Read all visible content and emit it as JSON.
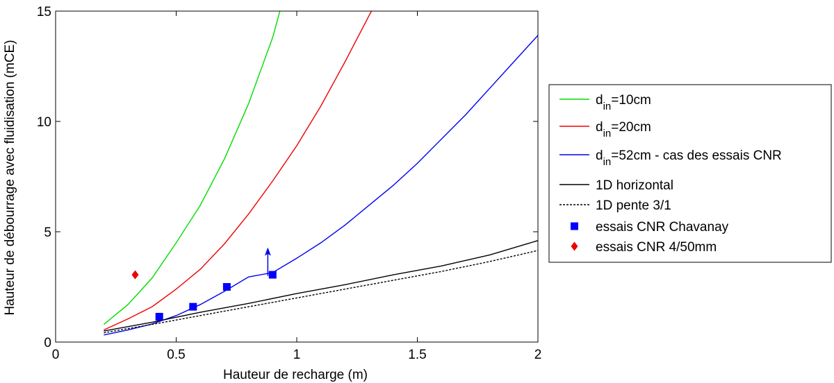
{
  "chart_data": {
    "type": "line",
    "xlabel": "Hauteur de recharge (m)",
    "ylabel": "Hauteur de débourrage avec fluidisation (mCE)",
    "xlim": [
      0,
      2
    ],
    "ylim": [
      0,
      15
    ],
    "xticks": [
      0,
      0.5,
      1,
      1.5,
      2
    ],
    "xtick_labels": [
      "0",
      "0.5",
      "1",
      "1.5",
      "2"
    ],
    "yticks": [
      0,
      5,
      10,
      15
    ],
    "ytick_labels": [
      "0",
      "5",
      "10",
      "15"
    ],
    "grid": false,
    "legend_position": "right",
    "series": [
      {
        "name": "d_in=10cm",
        "label_main": "d",
        "label_sub": "in",
        "label_rest": "=10cm",
        "kind": "line",
        "color": "#00dd00",
        "dash": "",
        "points": [
          [
            0.2,
            0.8
          ],
          [
            0.3,
            1.7
          ],
          [
            0.4,
            2.9
          ],
          [
            0.5,
            4.5
          ],
          [
            0.6,
            6.2
          ],
          [
            0.7,
            8.3
          ],
          [
            0.8,
            10.8
          ],
          [
            0.9,
            13.8
          ],
          [
            0.93,
            15.0
          ]
        ]
      },
      {
        "name": "d_in=20cm",
        "label_main": "d",
        "label_sub": "in",
        "label_rest": "=20cm",
        "kind": "line",
        "color": "#ee0000",
        "dash": "",
        "points": [
          [
            0.2,
            0.55
          ],
          [
            0.3,
            1.05
          ],
          [
            0.4,
            1.6
          ],
          [
            0.5,
            2.4
          ],
          [
            0.6,
            3.3
          ],
          [
            0.7,
            4.45
          ],
          [
            0.8,
            5.8
          ],
          [
            0.9,
            7.3
          ],
          [
            1.0,
            8.9
          ],
          [
            1.1,
            10.7
          ],
          [
            1.2,
            12.7
          ],
          [
            1.3,
            14.8
          ],
          [
            1.31,
            15.0
          ]
        ]
      },
      {
        "name": "d_in=52cm - cas des essais CNR",
        "label_main": "d",
        "label_sub": "in",
        "label_rest": "=52cm - cas des essais CNR",
        "kind": "line",
        "color": "#0000ee",
        "dash": "",
        "points": [
          [
            0.2,
            0.32
          ],
          [
            0.3,
            0.55
          ],
          [
            0.4,
            0.82
          ],
          [
            0.5,
            1.2
          ],
          [
            0.6,
            1.7
          ],
          [
            0.7,
            2.3
          ],
          [
            0.8,
            2.95
          ],
          [
            0.9,
            3.15
          ],
          [
            1.0,
            3.8
          ],
          [
            1.1,
            4.5
          ],
          [
            1.2,
            5.3
          ],
          [
            1.3,
            6.2
          ],
          [
            1.4,
            7.1
          ],
          [
            1.5,
            8.1
          ],
          [
            1.6,
            9.2
          ],
          [
            1.7,
            10.3
          ],
          [
            1.8,
            11.5
          ],
          [
            1.9,
            12.7
          ],
          [
            2.0,
            13.9
          ]
        ]
      },
      {
        "name": "1D horizontal",
        "label_main": "1D horizontal",
        "label_sub": "",
        "label_rest": "",
        "kind": "line",
        "color": "#000000",
        "dash": "",
        "points": [
          [
            0.2,
            0.5
          ],
          [
            0.4,
            0.9
          ],
          [
            0.6,
            1.35
          ],
          [
            0.8,
            1.75
          ],
          [
            1.0,
            2.2
          ],
          [
            1.2,
            2.6
          ],
          [
            1.4,
            3.05
          ],
          [
            1.6,
            3.45
          ],
          [
            1.8,
            3.95
          ],
          [
            2.0,
            4.6
          ]
        ]
      },
      {
        "name": "1D pente 3/1",
        "label_main": "1D pente 3/1",
        "label_sub": "",
        "label_rest": "",
        "kind": "line",
        "color": "#000000",
        "dash": "3,2",
        "points": [
          [
            0.2,
            0.42
          ],
          [
            0.4,
            0.8
          ],
          [
            0.6,
            1.2
          ],
          [
            0.8,
            1.6
          ],
          [
            1.0,
            2.0
          ],
          [
            1.2,
            2.4
          ],
          [
            1.4,
            2.8
          ],
          [
            1.6,
            3.2
          ],
          [
            1.8,
            3.65
          ],
          [
            2.0,
            4.15
          ]
        ]
      },
      {
        "name": "essais CNR Chavanay",
        "label_main": "essais CNR Chavanay",
        "label_sub": "",
        "label_rest": "",
        "kind": "square",
        "color": "#0000ff",
        "dash": "",
        "points": [
          [
            0.43,
            1.15
          ],
          [
            0.57,
            1.6
          ],
          [
            0.71,
            2.5
          ],
          [
            0.9,
            3.05
          ]
        ]
      },
      {
        "name": "essais CNR 4/50mm",
        "label_main": "essais CNR 4/50mm",
        "label_sub": "",
        "label_rest": "",
        "kind": "diamond",
        "color": "#ee0000",
        "dash": "",
        "points": [
          [
            0.33,
            3.05
          ]
        ]
      }
    ],
    "annotations": [
      {
        "type": "arrow",
        "color": "#0000ee",
        "x": 0.88,
        "y_from": 3.0,
        "y_to": 4.1
      }
    ]
  }
}
